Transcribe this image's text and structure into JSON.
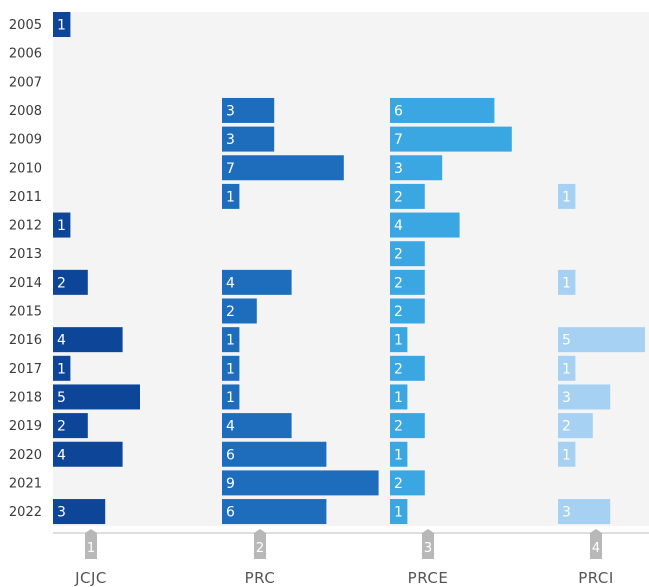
{
  "chart_data": {
    "type": "bar",
    "orientation": "horizontal",
    "years": [
      "2005",
      "2006",
      "2007",
      "2008",
      "2009",
      "2010",
      "2011",
      "2012",
      "2013",
      "2014",
      "2015",
      "2016",
      "2017",
      "2018",
      "2019",
      "2020",
      "2021",
      "2022"
    ],
    "series": [
      {
        "name": "JCJC",
        "badge": "1",
        "color": "#0d4599",
        "values": [
          1,
          null,
          null,
          null,
          null,
          null,
          null,
          1,
          null,
          2,
          null,
          4,
          1,
          5,
          2,
          4,
          null,
          3
        ]
      },
      {
        "name": "PRC",
        "badge": "2",
        "color": "#1e6dbd",
        "values": [
          null,
          null,
          null,
          3,
          3,
          7,
          1,
          null,
          null,
          4,
          2,
          1,
          1,
          1,
          4,
          6,
          9,
          6
        ]
      },
      {
        "name": "PRCE",
        "badge": "3",
        "color": "#3aa7e2",
        "values": [
          null,
          null,
          null,
          6,
          7,
          3,
          2,
          4,
          2,
          2,
          2,
          1,
          2,
          1,
          2,
          1,
          2,
          1
        ]
      },
      {
        "name": "PRCI",
        "badge": "4",
        "color": "#a6d1f3",
        "values": [
          null,
          null,
          null,
          null,
          null,
          null,
          1,
          null,
          null,
          1,
          null,
          5,
          1,
          3,
          2,
          1,
          null,
          3
        ]
      }
    ],
    "grid": false,
    "legend": "bottom"
  }
}
